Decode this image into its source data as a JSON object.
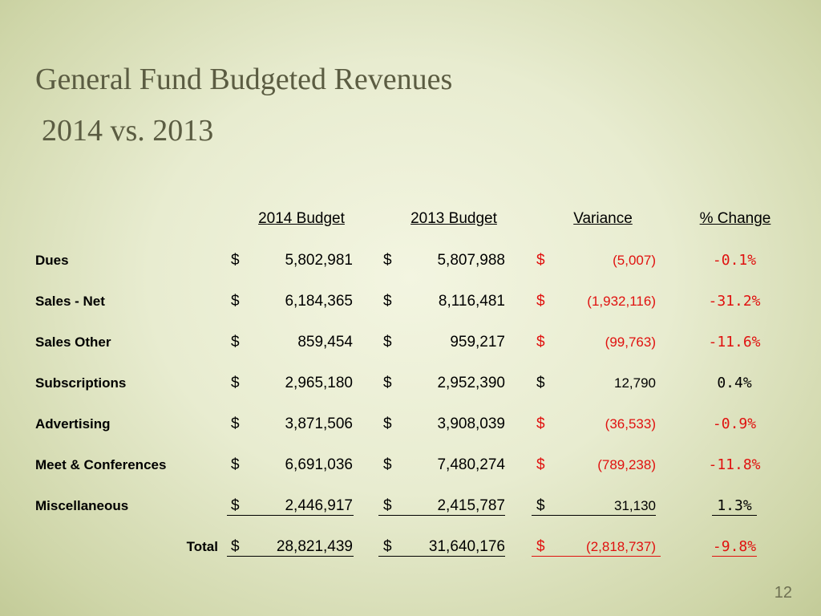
{
  "title": "General Fund Budgeted Revenues",
  "subtitle": "2014 vs. 2013",
  "columns": {
    "budget_2014": "2014 Budget",
    "budget_2013": "2013 Budget",
    "variance": "Variance",
    "pct_change": "% Change"
  },
  "rows": [
    {
      "label": "Dues",
      "d": "$",
      "b2014": "5,802,981",
      "b2013": "5,807,988",
      "variance": "(5,007)",
      "pct": "-0.1%",
      "negative": true
    },
    {
      "label": "Sales - Net",
      "d": "$",
      "b2014": "6,184,365",
      "b2013": "8,116,481",
      "variance": "(1,932,116)",
      "pct": "-31.2%",
      "negative": true
    },
    {
      "label": "Sales Other",
      "d": "$",
      "b2014": "859,454",
      "b2013": "959,217",
      "variance": "(99,763)",
      "pct": "-11.6%",
      "negative": true
    },
    {
      "label": "Subscriptions",
      "d": "$",
      "b2014": "2,965,180",
      "b2013": "2,952,390",
      "variance": "12,790",
      "pct": "0.4%",
      "negative": false
    },
    {
      "label": "Advertising",
      "d": "$",
      "b2014": "3,871,506",
      "b2013": "3,908,039",
      "variance": "(36,533)",
      "pct": "-0.9%",
      "negative": true
    },
    {
      "label": "Meet & Conferences",
      "d": "$",
      "b2014": "6,691,036",
      "b2013": "7,480,274",
      "variance": "(789,238)",
      "pct": "-11.8%",
      "negative": true
    },
    {
      "label": "Miscellaneous",
      "d": "$",
      "b2014": "2,446,917",
      "b2013": "2,415,787",
      "variance": "31,130",
      "pct": "1.3%",
      "negative": false
    }
  ],
  "total": {
    "label": "Total",
    "d": "$",
    "b2014": "28,821,439",
    "b2013": "31,640,176",
    "variance": "(2,818,737)",
    "pct": "-9.8%",
    "negative": true
  },
  "slide_number": "12",
  "colors": {
    "negative": "#e0110f",
    "title": "#5b5c42"
  }
}
